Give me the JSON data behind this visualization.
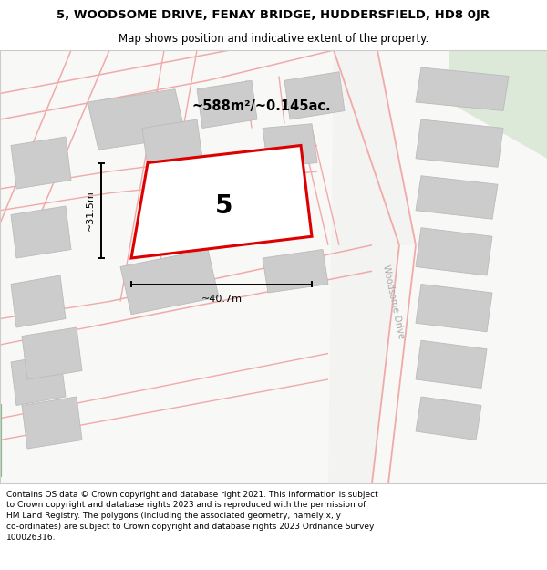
{
  "title_line1": "5, WOODSOME DRIVE, FENAY BRIDGE, HUDDERSFIELD, HD8 0JR",
  "title_line2": "Map shows position and indicative extent of the property.",
  "footer_text": "Contains OS data © Crown copyright and database right 2021. This information is subject to Crown copyright and database rights 2023 and is reproduced with the permission of HM Land Registry. The polygons (including the associated geometry, namely x, y co-ordinates) are subject to Crown copyright and database rights 2023 Ordnance Survey 100026316.",
  "area_label": "~588m²/~0.145ac.",
  "dim_width": "~40.7m",
  "dim_height": "~31.5m",
  "property_number": "5",
  "map_bg": "#f7f7f5",
  "plot_color": "#dd0000",
  "road_color": "#f0aaaa",
  "building_color": "#cccccc",
  "building_edge": "#bbbbbb",
  "green_color": "#dce8d8",
  "green_edge": "none",
  "street_label": "Woodsome Drive",
  "street_label_color": "#aaaaaa",
  "road_fill": "#f5f5f5"
}
